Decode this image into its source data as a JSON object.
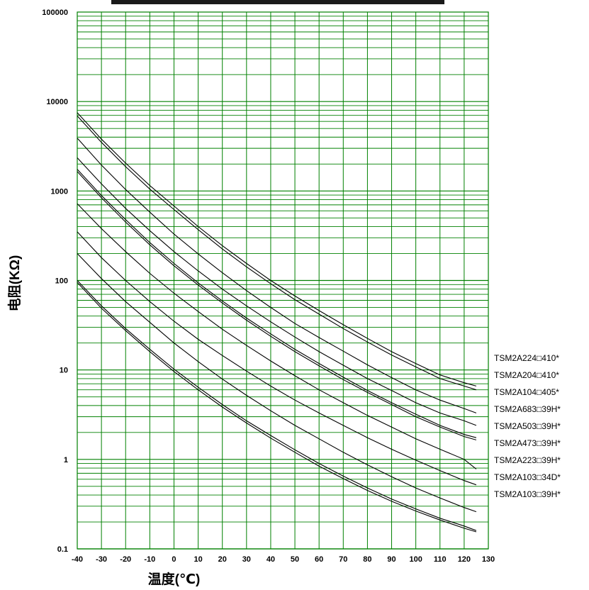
{
  "chart_data": {
    "type": "line",
    "title": "",
    "xlabel": "温度(℃)",
    "ylabel": "电阻(KΩ)",
    "xlim": [
      -40,
      130
    ],
    "ylim": [
      0.1,
      100000
    ],
    "y_scale": "log",
    "grid": true,
    "grid_color": "#008000",
    "line_color": "#000000",
    "legend_position": "right",
    "x_ticks": [
      "-40",
      "-30",
      "-20",
      "-10",
      "0",
      "10",
      "20",
      "30",
      "40",
      "50",
      "60",
      "70",
      "80",
      "90",
      "100",
      "110",
      "120",
      "130"
    ],
    "y_ticks": [
      "0.1",
      "1",
      "10",
      "100",
      "1000",
      "10000",
      "100000"
    ],
    "x": [
      -40,
      -30,
      -20,
      -10,
      0,
      10,
      20,
      30,
      40,
      50,
      60,
      70,
      80,
      90,
      100,
      110,
      120,
      125
    ],
    "series": [
      {
        "name": "TSM2A224□410*",
        "values": [
          7500,
          3800,
          2050,
          1150,
          680,
          400,
          245,
          155,
          100,
          67,
          46,
          32,
          22.5,
          16,
          11.8,
          8.8,
          7.2,
          6.6
        ]
      },
      {
        "name": "TSM2A204□410*",
        "values": [
          6900,
          3500,
          1870,
          1050,
          620,
          370,
          225,
          142,
          92,
          61,
          42,
          29,
          20.5,
          14.7,
          10.8,
          8.0,
          6.6,
          6.0
        ]
      },
      {
        "name": "TSM2A104□405*",
        "values": [
          3900,
          1950,
          1040,
          580,
          330,
          198,
          122,
          77,
          50,
          33,
          23,
          16.2,
          11.4,
          8.2,
          6.0,
          4.6,
          3.7,
          3.3
        ]
      },
      {
        "name": "TSM2A683□39H*",
        "values": [
          2350,
          1200,
          640,
          360,
          210,
          128,
          80,
          52,
          34.5,
          23.3,
          16.0,
          11.3,
          8.0,
          5.9,
          4.3,
          3.3,
          2.7,
          2.4
        ]
      },
      {
        "name": "TSM2A503□39H*",
        "values": [
          1750,
          890,
          480,
          265,
          155,
          94,
          59,
          38,
          25.3,
          17.0,
          11.8,
          8.3,
          5.9,
          4.3,
          3.2,
          2.4,
          1.9,
          1.75
        ]
      },
      {
        "name": "TSM2A473□39H*",
        "values": [
          1650,
          840,
          450,
          250,
          146,
          89,
          56,
          36,
          23.8,
          16.0,
          11.1,
          7.8,
          5.6,
          4.1,
          3.0,
          2.3,
          1.8,
          1.65
        ]
      },
      {
        "name": "TSM2A223□39H*",
        "values": [
          720,
          380,
          210,
          120,
          72,
          45,
          28.5,
          18.8,
          12.6,
          8.6,
          6.0,
          4.3,
          3.1,
          2.3,
          1.7,
          1.3,
          1.0,
          0.78
        ]
      },
      {
        "name": "TSM2A103□34D*",
        "values": [
          350,
          180,
          100,
          58,
          35,
          22,
          14.5,
          9.7,
          6.6,
          4.6,
          3.3,
          2.4,
          1.75,
          1.3,
          0.98,
          0.75,
          0.58,
          0.52
        ]
      },
      {
        "name": "TSM2A103□39H*",
        "values": [
          200,
          105,
          58,
          34,
          20,
          12.4,
          7.9,
          5.2,
          3.5,
          2.4,
          1.7,
          1.2,
          0.87,
          0.64,
          0.48,
          0.37,
          0.29,
          0.26
        ]
      },
      {
        "name": "",
        "values": [
          100,
          52,
          29,
          17,
          10.2,
          6.4,
          4.1,
          2.7,
          1.85,
          1.28,
          0.9,
          0.65,
          0.48,
          0.36,
          0.28,
          0.22,
          0.18,
          0.16
        ]
      },
      {
        "name": "",
        "values": [
          95,
          49,
          27.5,
          16,
          9.6,
          6.0,
          3.85,
          2.55,
          1.73,
          1.2,
          0.84,
          0.61,
          0.45,
          0.34,
          0.265,
          0.21,
          0.17,
          0.155
        ]
      }
    ]
  }
}
